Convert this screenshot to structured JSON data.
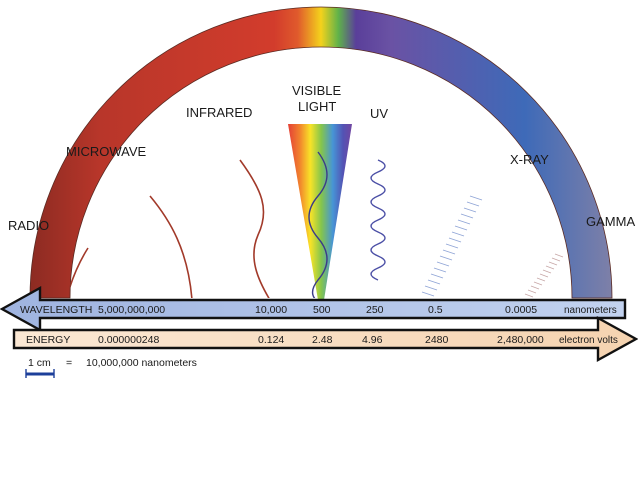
{
  "bands": {
    "radio": "RADIO",
    "microwave": "MICROWAVE",
    "infrared": "INFRARED",
    "visible_line1": "VISIBLE",
    "visible_line2": "LIGHT",
    "uv": "UV",
    "xray": "X-RAY",
    "gamma": "GAMMA"
  },
  "wavelength": {
    "title": "WAVELENGTH",
    "values": [
      "5,000,000,000",
      "10,000",
      "500",
      "250",
      "0.5",
      "0.0005"
    ],
    "unit": "nanometers"
  },
  "energy": {
    "title": "ENERGY",
    "values": [
      "0.000000248",
      "0.124",
      "2.48",
      "4.96",
      "2480",
      "2,480,000"
    ],
    "unit": "electron volts"
  },
  "scale_legend": {
    "length": "1 cm",
    "equals": "=",
    "value": "10,000,000 nanometers"
  },
  "colors": {
    "red": "#c2382b",
    "dark_red": "#8e2a22",
    "blue": "#3e5fb0",
    "wavelength_bar": "#a9bfe6",
    "energy_bar": "#f8dcbf",
    "wave_line_red": "#a23a2a",
    "wave_line_blue": "#4b4fa6"
  }
}
